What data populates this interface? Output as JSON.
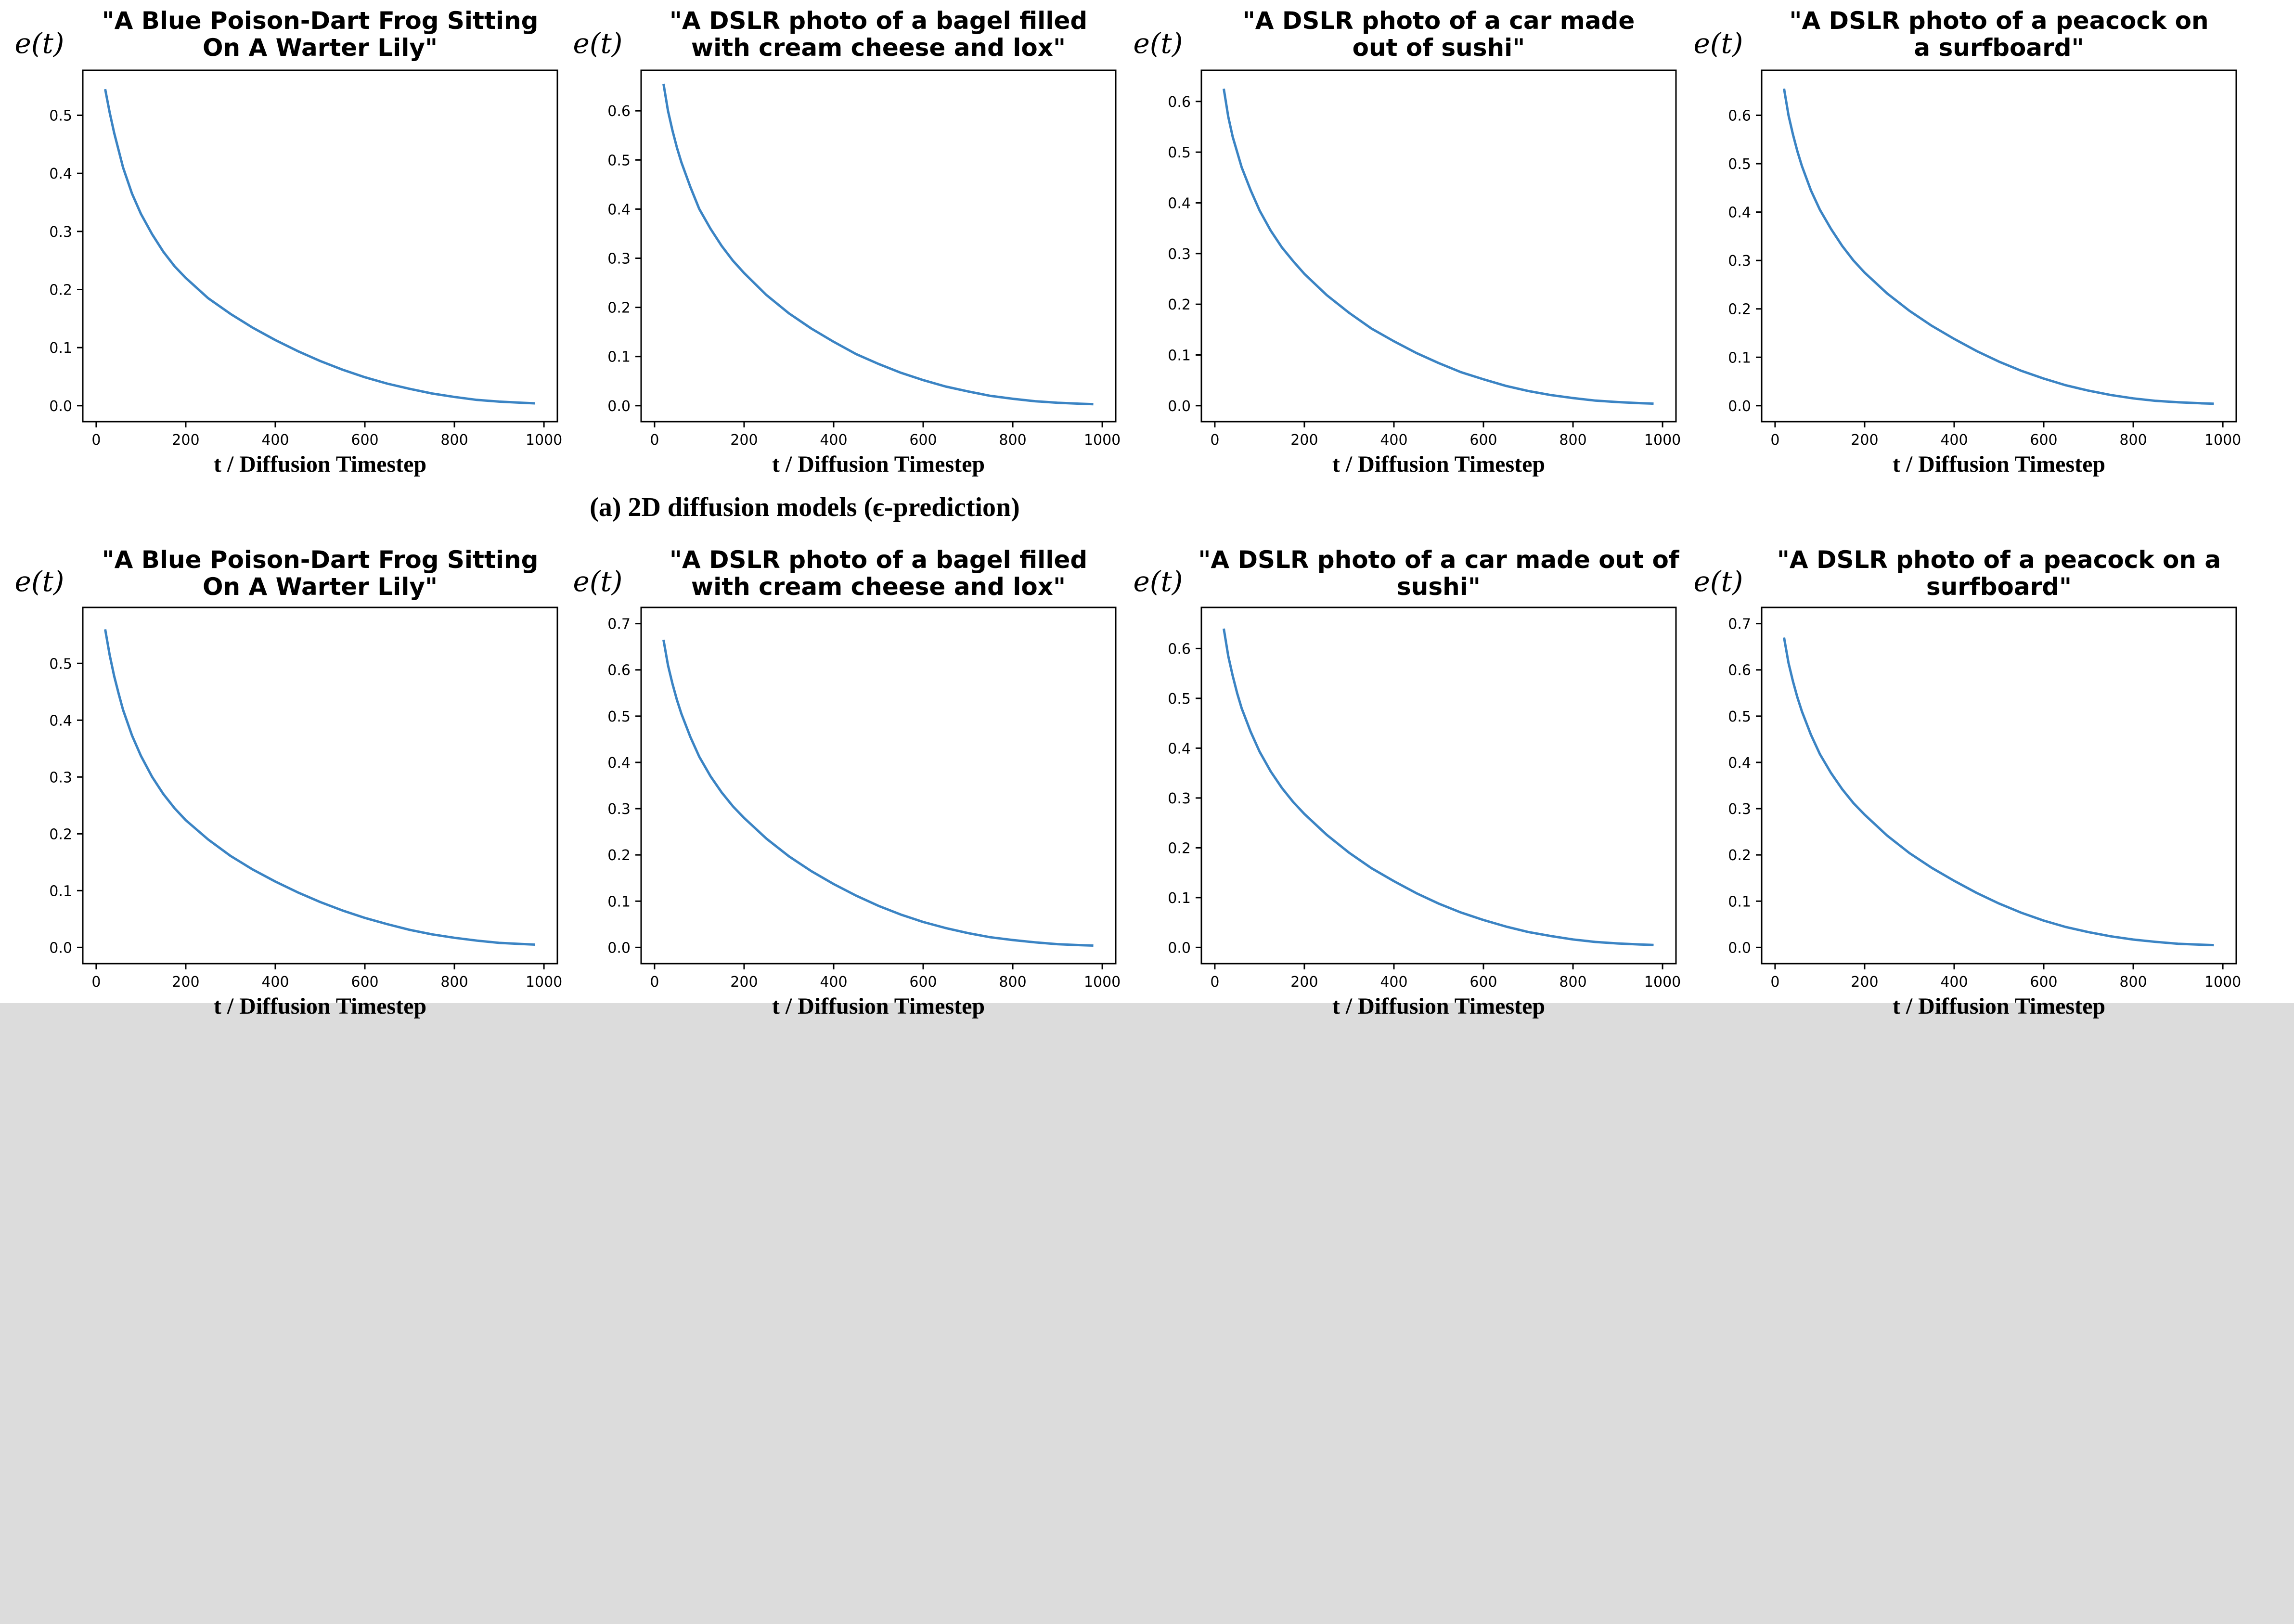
{
  "figure": {
    "caption": "(a) 2D diffusion models (ϵ-prediction)"
  },
  "colors": {
    "curve": "#3b84c4",
    "background": "#ffffff",
    "lower_band": "#dcdcdc"
  },
  "chart_data": [
    {
      "type": "line",
      "title": "\"A Blue Poison-Dart Frog Sitting On A Warter Lily\"",
      "title_lines": [
        "\"A Blue Poison-Dart Frog Sitting",
        "On A Warter Lily\""
      ],
      "xlabel": "t / Diffusion Timestep",
      "ylabel": "e(t)",
      "xlim": [
        0,
        1000
      ],
      "ylim": [
        0,
        0.55
      ],
      "xticks": [
        0,
        200,
        400,
        600,
        800,
        1000
      ],
      "yticks": [
        0.0,
        0.1,
        0.2,
        0.3,
        0.4,
        0.5
      ],
      "ytick_labels": [
        "0.0",
        "0.1",
        "0.2",
        "0.3",
        "0.4",
        "0.5"
      ],
      "series": [
        {
          "x": [
            20,
            30,
            40,
            50,
            60,
            80,
            100,
            125,
            150,
            175,
            200,
            250,
            300,
            350,
            400,
            450,
            500,
            550,
            600,
            650,
            700,
            750,
            800,
            850,
            900,
            950,
            980
          ],
          "y": [
            0.545,
            0.505,
            0.47,
            0.44,
            0.41,
            0.365,
            0.33,
            0.295,
            0.265,
            0.24,
            0.22,
            0.185,
            0.158,
            0.134,
            0.113,
            0.094,
            0.077,
            0.062,
            0.049,
            0.038,
            0.029,
            0.021,
            0.015,
            0.01,
            0.007,
            0.005,
            0.004
          ]
        }
      ]
    },
    {
      "type": "line",
      "title": "\"A DSLR photo of a bagel filled with cream cheese and lox\"",
      "title_lines": [
        "\"A DSLR photo of a bagel filled",
        "with cream cheese and lox\""
      ],
      "xlabel": "t / Diffusion Timestep",
      "ylabel": "e(t)",
      "xlim": [
        0,
        1000
      ],
      "ylim": [
        0,
        0.65
      ],
      "xticks": [
        0,
        200,
        400,
        600,
        800,
        1000
      ],
      "yticks": [
        0.0,
        0.1,
        0.2,
        0.3,
        0.4,
        0.5,
        0.6
      ],
      "ytick_labels": [
        "0.0",
        "0.1",
        "0.2",
        "0.3",
        "0.4",
        "0.5",
        "0.6"
      ],
      "series": [
        {
          "x": [
            20,
            30,
            40,
            50,
            60,
            80,
            100,
            125,
            150,
            175,
            200,
            250,
            300,
            350,
            400,
            450,
            500,
            550,
            600,
            650,
            700,
            750,
            800,
            850,
            900,
            950,
            980
          ],
          "y": [
            0.655,
            0.6,
            0.56,
            0.525,
            0.495,
            0.445,
            0.4,
            0.36,
            0.325,
            0.295,
            0.27,
            0.225,
            0.188,
            0.157,
            0.13,
            0.105,
            0.085,
            0.067,
            0.052,
            0.039,
            0.029,
            0.02,
            0.014,
            0.009,
            0.006,
            0.004,
            0.003
          ]
        }
      ]
    },
    {
      "type": "line",
      "title": "\"A DSLR photo of a car made out of sushi\"",
      "title_lines": [
        "\"A DSLR photo of a car made",
        "out of sushi\""
      ],
      "xlabel": "t / Diffusion Timestep",
      "ylabel": "e(t)",
      "xlim": [
        0,
        1000
      ],
      "ylim": [
        0,
        0.63
      ],
      "xticks": [
        0,
        200,
        400,
        600,
        800,
        1000
      ],
      "yticks": [
        0.0,
        0.1,
        0.2,
        0.3,
        0.4,
        0.5,
        0.6
      ],
      "ytick_labels": [
        "0.0",
        "0.1",
        "0.2",
        "0.3",
        "0.4",
        "0.5",
        "0.6"
      ],
      "series": [
        {
          "x": [
            20,
            30,
            40,
            50,
            60,
            80,
            100,
            125,
            150,
            175,
            200,
            250,
            300,
            350,
            400,
            450,
            500,
            550,
            600,
            650,
            700,
            750,
            800,
            850,
            900,
            950,
            980
          ],
          "y": [
            0.625,
            0.57,
            0.53,
            0.5,
            0.47,
            0.425,
            0.385,
            0.345,
            0.312,
            0.285,
            0.26,
            0.218,
            0.183,
            0.152,
            0.127,
            0.104,
            0.084,
            0.066,
            0.052,
            0.039,
            0.029,
            0.021,
            0.015,
            0.01,
            0.007,
            0.005,
            0.004
          ]
        }
      ]
    },
    {
      "type": "line",
      "title": "\"A DSLR photo of a peacock on a surfboard\"",
      "title_lines": [
        "\"A DSLR photo of a peacock on",
        "a surfboard\""
      ],
      "xlabel": "t / Diffusion Timestep",
      "ylabel": "e(t)",
      "xlim": [
        0,
        1000
      ],
      "ylim": [
        0,
        0.66
      ],
      "xticks": [
        0,
        200,
        400,
        600,
        800,
        1000
      ],
      "yticks": [
        0.0,
        0.1,
        0.2,
        0.3,
        0.4,
        0.5,
        0.6
      ],
      "ytick_labels": [
        "0.0",
        "0.1",
        "0.2",
        "0.3",
        "0.4",
        "0.5",
        "0.6"
      ],
      "series": [
        {
          "x": [
            20,
            30,
            40,
            50,
            60,
            80,
            100,
            125,
            150,
            175,
            200,
            250,
            300,
            350,
            400,
            450,
            500,
            550,
            600,
            650,
            700,
            750,
            800,
            850,
            900,
            950,
            980
          ],
          "y": [
            0.655,
            0.6,
            0.56,
            0.525,
            0.495,
            0.445,
            0.405,
            0.365,
            0.33,
            0.3,
            0.275,
            0.232,
            0.196,
            0.165,
            0.138,
            0.113,
            0.091,
            0.072,
            0.056,
            0.042,
            0.031,
            0.022,
            0.015,
            0.01,
            0.007,
            0.005,
            0.004
          ]
        }
      ]
    },
    {
      "type": "line",
      "title": "\"A Blue Poison-Dart Frog Sitting On A Warter Lily\"",
      "title_lines": [
        "\"A Blue Poison-Dart Frog Sitting",
        "On A Warter Lily\""
      ],
      "xlabel": "t / Diffusion Timestep",
      "ylabel": "e(t)",
      "xlim": [
        0,
        1000
      ],
      "ylim": [
        0,
        0.57
      ],
      "xticks": [
        0,
        200,
        400,
        600,
        800,
        1000
      ],
      "yticks": [
        0.0,
        0.1,
        0.2,
        0.3,
        0.4,
        0.5
      ],
      "ytick_labels": [
        "0.0",
        "0.1",
        "0.2",
        "0.3",
        "0.4",
        "0.5"
      ],
      "series": [
        {
          "x": [
            20,
            30,
            40,
            50,
            60,
            80,
            100,
            125,
            150,
            175,
            200,
            250,
            300,
            350,
            400,
            450,
            500,
            550,
            600,
            650,
            700,
            750,
            800,
            850,
            900,
            950,
            980
          ],
          "y": [
            0.56,
            0.515,
            0.478,
            0.447,
            0.418,
            0.373,
            0.337,
            0.3,
            0.27,
            0.245,
            0.224,
            0.19,
            0.161,
            0.137,
            0.116,
            0.097,
            0.08,
            0.065,
            0.052,
            0.041,
            0.031,
            0.023,
            0.017,
            0.012,
            0.008,
            0.006,
            0.005
          ]
        }
      ]
    },
    {
      "type": "line",
      "title": "\"A DSLR photo of a bagel filled with cream cheese and lox\"",
      "title_lines": [
        "\"A DSLR photo of a bagel filled",
        "with cream cheese and lox\""
      ],
      "xlabel": "t / Diffusion Timestep",
      "ylabel": "e(t)",
      "xlim": [
        0,
        1000
      ],
      "ylim": [
        0,
        0.7
      ],
      "xticks": [
        0,
        200,
        400,
        600,
        800,
        1000
      ],
      "yticks": [
        0.0,
        0.1,
        0.2,
        0.3,
        0.4,
        0.5,
        0.6,
        0.7
      ],
      "ytick_labels": [
        "0.0",
        "0.1",
        "0.2",
        "0.3",
        "0.4",
        "0.5",
        "0.6",
        "0.7"
      ],
      "series": [
        {
          "x": [
            20,
            30,
            40,
            50,
            60,
            80,
            100,
            125,
            150,
            175,
            200,
            250,
            300,
            350,
            400,
            450,
            500,
            550,
            600,
            650,
            700,
            750,
            800,
            850,
            900,
            950,
            980
          ],
          "y": [
            0.665,
            0.61,
            0.57,
            0.535,
            0.505,
            0.455,
            0.412,
            0.37,
            0.335,
            0.305,
            0.28,
            0.235,
            0.197,
            0.165,
            0.137,
            0.112,
            0.09,
            0.071,
            0.055,
            0.042,
            0.031,
            0.022,
            0.016,
            0.011,
            0.007,
            0.005,
            0.004
          ]
        }
      ]
    },
    {
      "type": "line",
      "title": "\"A DSLR photo of a car made out of sushi\"",
      "title_lines": [
        "\"A DSLR photo of a car made out of",
        "sushi\""
      ],
      "xlabel": "t / Diffusion Timestep",
      "ylabel": "e(t)",
      "xlim": [
        0,
        1000
      ],
      "ylim": [
        0,
        0.65
      ],
      "xticks": [
        0,
        200,
        400,
        600,
        800,
        1000
      ],
      "yticks": [
        0.0,
        0.1,
        0.2,
        0.3,
        0.4,
        0.5,
        0.6
      ],
      "ytick_labels": [
        "0.0",
        "0.1",
        "0.2",
        "0.3",
        "0.4",
        "0.5",
        "0.6"
      ],
      "series": [
        {
          "x": [
            20,
            30,
            40,
            50,
            60,
            80,
            100,
            125,
            150,
            175,
            200,
            250,
            300,
            350,
            400,
            450,
            500,
            550,
            600,
            650,
            700,
            750,
            800,
            850,
            900,
            950,
            980
          ],
          "y": [
            0.64,
            0.585,
            0.545,
            0.51,
            0.48,
            0.433,
            0.393,
            0.353,
            0.32,
            0.292,
            0.268,
            0.226,
            0.19,
            0.159,
            0.133,
            0.109,
            0.088,
            0.07,
            0.055,
            0.042,
            0.031,
            0.023,
            0.016,
            0.011,
            0.008,
            0.006,
            0.005
          ]
        }
      ]
    },
    {
      "type": "line",
      "title": "\"A DSLR photo of a peacock on a surfboard\"",
      "title_lines": [
        "\"A DSLR photo of a peacock on a",
        "surfboard\""
      ],
      "xlabel": "t / Diffusion Timestep",
      "ylabel": "e(t)",
      "xlim": [
        0,
        1000
      ],
      "ylim": [
        0,
        0.7
      ],
      "xticks": [
        0,
        200,
        400,
        600,
        800,
        1000
      ],
      "yticks": [
        0.0,
        0.1,
        0.2,
        0.3,
        0.4,
        0.5,
        0.6,
        0.7
      ],
      "ytick_labels": [
        "0.0",
        "0.1",
        "0.2",
        "0.3",
        "0.4",
        "0.5",
        "0.6",
        "0.7"
      ],
      "series": [
        {
          "x": [
            20,
            30,
            40,
            50,
            60,
            80,
            100,
            125,
            150,
            175,
            200,
            250,
            300,
            350,
            400,
            450,
            500,
            550,
            600,
            650,
            700,
            750,
            800,
            850,
            900,
            950,
            980
          ],
          "y": [
            0.67,
            0.615,
            0.575,
            0.54,
            0.51,
            0.46,
            0.418,
            0.377,
            0.342,
            0.312,
            0.287,
            0.242,
            0.204,
            0.172,
            0.144,
            0.118,
            0.095,
            0.075,
            0.058,
            0.044,
            0.033,
            0.024,
            0.017,
            0.012,
            0.008,
            0.006,
            0.005
          ]
        }
      ]
    }
  ]
}
